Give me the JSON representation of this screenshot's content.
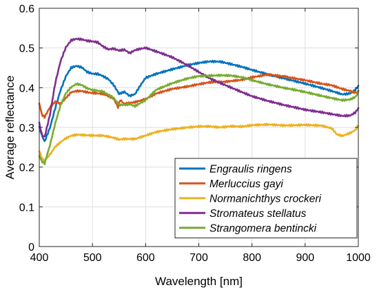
{
  "chart_data": {
    "type": "line",
    "title": "",
    "xlabel": "Wavelength [nm]",
    "ylabel": "Average reflectance",
    "xlim": [
      400,
      1000
    ],
    "ylim": [
      0,
      0.6
    ],
    "xticks": [
      400,
      500,
      600,
      700,
      800,
      900,
      1000
    ],
    "yticks": [
      0,
      0.1,
      0.2,
      0.3,
      0.4,
      0.5,
      0.6
    ],
    "xtick_labels": [
      "400",
      "500",
      "600",
      "700",
      "800",
      "900",
      "1000"
    ],
    "ytick_labels": [
      "0",
      "0.1",
      "0.2",
      "0.3",
      "0.4",
      "0.5",
      "0.6"
    ],
    "grid": true,
    "legend_position": "bottom-right",
    "series": [
      {
        "name": "Engraulis ringens",
        "color": "#0072BD",
        "x": [
          400,
          405,
          410,
          420,
          430,
          440,
          450,
          460,
          470,
          480,
          490,
          500,
          510,
          520,
          530,
          540,
          550,
          560,
          570,
          580,
          590,
          600,
          620,
          650,
          680,
          700,
          720,
          740,
          760,
          780,
          800,
          830,
          860,
          900,
          930,
          950,
          970,
          985,
          995,
          1000
        ],
        "y": [
          0.3,
          0.28,
          0.265,
          0.3,
          0.35,
          0.395,
          0.43,
          0.452,
          0.456,
          0.452,
          0.44,
          0.435,
          0.434,
          0.428,
          0.42,
          0.405,
          0.383,
          0.388,
          0.378,
          0.383,
          0.405,
          0.425,
          0.436,
          0.448,
          0.458,
          0.462,
          0.465,
          0.464,
          0.458,
          0.452,
          0.445,
          0.435,
          0.425,
          0.41,
          0.398,
          0.39,
          0.382,
          0.385,
          0.395,
          0.405
        ]
      },
      {
        "name": "Merluccius gayi",
        "color": "#D95319",
        "x": [
          400,
          405,
          410,
          420,
          430,
          440,
          450,
          460,
          470,
          480,
          490,
          500,
          520,
          540,
          548,
          552,
          560,
          570,
          580,
          600,
          620,
          650,
          680,
          700,
          720,
          750,
          780,
          800,
          830,
          860,
          900,
          930,
          950,
          970,
          985,
          995,
          1000
        ],
        "y": [
          0.36,
          0.33,
          0.325,
          0.35,
          0.365,
          0.36,
          0.375,
          0.39,
          0.393,
          0.393,
          0.39,
          0.388,
          0.385,
          0.372,
          0.35,
          0.368,
          0.358,
          0.36,
          0.362,
          0.37,
          0.385,
          0.398,
          0.405,
          0.41,
          0.414,
          0.414,
          0.418,
          0.425,
          0.433,
          0.43,
          0.42,
          0.41,
          0.405,
          0.395,
          0.39,
          0.385,
          0.39
        ]
      },
      {
        "name": "Normanichthys crockeri",
        "color": "#EDB120",
        "x": [
          400,
          405,
          410,
          420,
          430,
          440,
          450,
          460,
          470,
          480,
          500,
          520,
          540,
          550,
          560,
          580,
          600,
          620,
          650,
          680,
          700,
          720,
          740,
          760,
          780,
          800,
          830,
          860,
          900,
          930,
          950,
          960,
          970,
          985,
          995,
          1000
        ],
        "y": [
          0.24,
          0.22,
          0.215,
          0.23,
          0.25,
          0.262,
          0.272,
          0.279,
          0.282,
          0.282,
          0.281,
          0.281,
          0.275,
          0.27,
          0.271,
          0.27,
          0.278,
          0.287,
          0.295,
          0.301,
          0.304,
          0.304,
          0.301,
          0.303,
          0.301,
          0.304,
          0.306,
          0.305,
          0.308,
          0.306,
          0.298,
          0.282,
          0.278,
          0.285,
          0.292,
          0.305
        ]
      },
      {
        "name": "Stromateus stellatus",
        "color": "#7E2F8E",
        "x": [
          400,
          405,
          410,
          420,
          430,
          440,
          450,
          460,
          470,
          480,
          490,
          500,
          510,
          520,
          530,
          540,
          550,
          560,
          570,
          580,
          590,
          600,
          620,
          650,
          680,
          700,
          720,
          750,
          780,
          800,
          830,
          860,
          900,
          930,
          950,
          970,
          985,
          995,
          1000
        ],
        "y": [
          0.31,
          0.28,
          0.275,
          0.33,
          0.41,
          0.465,
          0.5,
          0.518,
          0.522,
          0.521,
          0.518,
          0.517,
          0.515,
          0.505,
          0.498,
          0.5,
          0.495,
          0.497,
          0.488,
          0.495,
          0.498,
          0.5,
          0.49,
          0.475,
          0.455,
          0.44,
          0.425,
          0.408,
          0.39,
          0.378,
          0.365,
          0.355,
          0.345,
          0.34,
          0.335,
          0.33,
          0.33,
          0.338,
          0.348
        ]
      },
      {
        "name": "Strangomera bentincki",
        "color": "#77AC30",
        "x": [
          400,
          405,
          410,
          420,
          430,
          440,
          450,
          460,
          470,
          480,
          490,
          500,
          520,
          540,
          550,
          560,
          570,
          580,
          600,
          620,
          650,
          680,
          700,
          720,
          740,
          760,
          780,
          800,
          830,
          860,
          900,
          930,
          950,
          970,
          985,
          995,
          1000
        ],
        "y": [
          0.23,
          0.215,
          0.21,
          0.255,
          0.31,
          0.355,
          0.385,
          0.4,
          0.408,
          0.405,
          0.397,
          0.393,
          0.39,
          0.375,
          0.358,
          0.358,
          0.36,
          0.355,
          0.37,
          0.395,
          0.41,
          0.422,
          0.428,
          0.43,
          0.432,
          0.432,
          0.428,
          0.42,
          0.408,
          0.398,
          0.388,
          0.38,
          0.375,
          0.37,
          0.372,
          0.378,
          0.39
        ]
      }
    ]
  }
}
